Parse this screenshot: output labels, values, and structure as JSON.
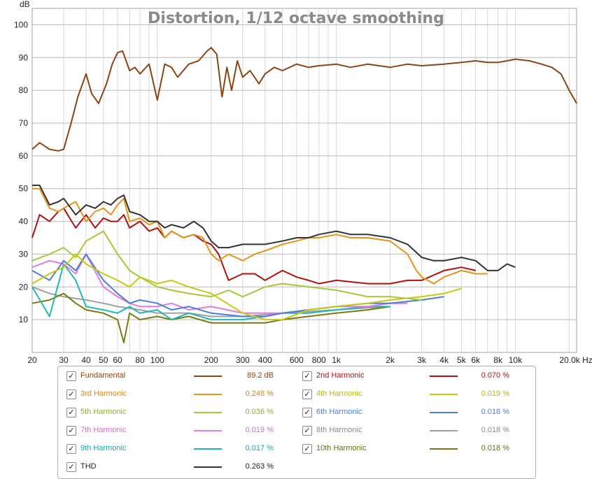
{
  "chart_data": {
    "type": "line",
    "title": "Distortion, 1/12 octave smoothing",
    "ylabel": "dB",
    "xlabel": "",
    "x_unit": "Hz",
    "x_scale": "log",
    "xlim": [
      20,
      22000
    ],
    "ylim": [
      0,
      105
    ],
    "grid": true,
    "legend_position": "bottom",
    "x_ticks": [
      20,
      30,
      40,
      50,
      60,
      80,
      100,
      200,
      300,
      400,
      600,
      800,
      1000,
      2000,
      3000,
      4000,
      5000,
      6000,
      8000,
      10000,
      20000
    ],
    "x_tick_labels": [
      "20",
      "30",
      "40",
      "50",
      "60",
      "80",
      "100",
      "200",
      "300",
      "400",
      "600",
      "800",
      "1k",
      "2k",
      "3k",
      "4k",
      "5k",
      "6k",
      "8k",
      "10k",
      "20.0k Hz"
    ],
    "y_ticks": [
      10,
      20,
      30,
      40,
      50,
      60,
      70,
      80,
      90,
      100
    ],
    "y_tick_labels": [
      "10",
      "20",
      "30",
      "40",
      "50",
      "60",
      "70",
      "80",
      "90",
      "100"
    ],
    "series": [
      {
        "name": "Fundamental",
        "color": "#8b4513",
        "value": "89.2 dB",
        "x": [
          20,
          22,
          25,
          28,
          30,
          33,
          36,
          40,
          43,
          47,
          52,
          56,
          60,
          64,
          70,
          75,
          80,
          90,
          100,
          110,
          120,
          130,
          150,
          170,
          190,
          200,
          215,
          230,
          245,
          260,
          280,
          300,
          330,
          370,
          400,
          450,
          500,
          600,
          700,
          800,
          1000,
          1200,
          1500,
          2000,
          2500,
          3000,
          4000,
          5000,
          6000,
          7000,
          8000,
          9000,
          10000,
          12000,
          14000,
          16000,
          18000,
          20000,
          22000
        ],
        "y": [
          62,
          64,
          62,
          61.5,
          62,
          70,
          78,
          85,
          79,
          76,
          82,
          88,
          91.5,
          92,
          86,
          87,
          85,
          88,
          77,
          88,
          87,
          84,
          88,
          89,
          92,
          93,
          91,
          78,
          87,
          80,
          89,
          84,
          86,
          82,
          85,
          87,
          86,
          88,
          87,
          87.5,
          88,
          87,
          88,
          87,
          88,
          87.5,
          88,
          88.5,
          89,
          88.5,
          88.5,
          89,
          89.5,
          89,
          88,
          87,
          85,
          80,
          76
        ]
      },
      {
        "name": "2nd Harmonic",
        "color": "#b01010",
        "value": "0.070 %",
        "x": [
          20,
          22,
          25,
          28,
          30,
          35,
          40,
          45,
          50,
          55,
          60,
          65,
          70,
          80,
          90,
          100,
          110,
          120,
          140,
          160,
          180,
          200,
          220,
          250,
          300,
          350,
          400,
          500,
          600,
          700,
          800,
          1000,
          1500,
          2000,
          2500,
          3000,
          4000,
          5000,
          6000
        ],
        "y": [
          35,
          42,
          40,
          43,
          44,
          38,
          42,
          38,
          41,
          40,
          40,
          42,
          38,
          40,
          37,
          38,
          35,
          37,
          35,
          36,
          34,
          33,
          30,
          22,
          24,
          24,
          22,
          25,
          23,
          22,
          21,
          22,
          21,
          21,
          22,
          22,
          25,
          26,
          25
        ]
      },
      {
        "name": "3rd Harmonic",
        "color": "#e69419",
        "value": "0.248 %",
        "x": [
          20,
          22,
          25,
          28,
          30,
          35,
          40,
          45,
          50,
          55,
          60,
          65,
          70,
          80,
          90,
          100,
          110,
          120,
          140,
          160,
          180,
          200,
          220,
          250,
          300,
          350,
          400,
          500,
          600,
          700,
          800,
          1000,
          1200,
          1500,
          2000,
          2500,
          2800,
          3000,
          3500,
          4000,
          5000,
          6000,
          7000
        ],
        "y": [
          50,
          50,
          44,
          43,
          44,
          46,
          40,
          43,
          44,
          42,
          45,
          47,
          40,
          41,
          39,
          40,
          35,
          37,
          35,
          36,
          35,
          30,
          28,
          30,
          28,
          30,
          31,
          33,
          34,
          35,
          35,
          36,
          35,
          35,
          34,
          30,
          25,
          23,
          21,
          23,
          25,
          24,
          24
        ]
      },
      {
        "name": "4th Harmonic",
        "color": "#c8c810",
        "value": "0.019 %",
        "x": [
          20,
          25,
          30,
          35,
          40,
          50,
          60,
          70,
          80,
          100,
          120,
          150,
          200,
          300,
          400,
          500,
          700,
          1000,
          1500,
          2000,
          3000,
          4000,
          5000
        ],
        "y": [
          21,
          24,
          26,
          30,
          27,
          24,
          22,
          20,
          23,
          21,
          22,
          20,
          18,
          12,
          10,
          10,
          13,
          14,
          15,
          16,
          17,
          18,
          19.5
        ]
      },
      {
        "name": "5th Harmonic",
        "color": "#a3c93a",
        "value": "0.036 %",
        "x": [
          20,
          25,
          30,
          35,
          40,
          50,
          60,
          70,
          80,
          100,
          120,
          150,
          200,
          250,
          300,
          400,
          500,
          700,
          1000,
          1500,
          2000,
          3000
        ],
        "y": [
          28,
          30,
          32,
          29,
          34,
          37,
          30,
          25,
          23,
          20,
          19,
          18,
          17,
          19,
          17,
          20,
          21,
          20,
          19,
          17,
          17,
          16
        ]
      },
      {
        "name": "6th Harmonic",
        "color": "#4b7fd6",
        "value": "0.018 %",
        "x": [
          20,
          25,
          30,
          35,
          40,
          50,
          60,
          70,
          80,
          100,
          120,
          150,
          200,
          300,
          400,
          500,
          700,
          1000,
          1500,
          2000,
          3000,
          4000
        ],
        "y": [
          25,
          22,
          28,
          25,
          30,
          22,
          18,
          15,
          16,
          15,
          13,
          14,
          12,
          11,
          11,
          12,
          13,
          14,
          15,
          15,
          16,
          17
        ]
      },
      {
        "name": "7th Harmonic",
        "color": "#e07ae0",
        "value": "0.019 %",
        "x": [
          20,
          25,
          30,
          35,
          40,
          50,
          60,
          70,
          80,
          100,
          120,
          150,
          200,
          300,
          400,
          500,
          700,
          1000,
          1500,
          2000,
          2500
        ],
        "y": [
          26,
          28,
          27,
          24,
          30,
          20,
          17,
          15,
          14,
          14,
          15,
          13,
          14,
          12,
          12,
          12,
          13,
          14,
          14,
          15,
          15
        ]
      },
      {
        "name": "8th Harmonic",
        "color": "#a0a0a0",
        "value": "0.018 %",
        "x": [
          20,
          25,
          30,
          40,
          50,
          60,
          80,
          100,
          150,
          200,
          300,
          500,
          1000,
          2000
        ],
        "y": [
          20,
          18,
          17,
          16,
          15,
          14,
          13,
          12,
          12,
          11,
          11,
          12,
          13,
          14
        ]
      },
      {
        "name": "9th Harmonic",
        "color": "#1fb8b8",
        "value": "0.017 %",
        "x": [
          20,
          25,
          30,
          35,
          40,
          50,
          60,
          70,
          80,
          100,
          120,
          150,
          200,
          300,
          400,
          500,
          700,
          1000,
          1500,
          2000
        ],
        "y": [
          20,
          11,
          27,
          22,
          14,
          13,
          12,
          14,
          12,
          13,
          10,
          12,
          10,
          10,
          11,
          12,
          12,
          13,
          14,
          14
        ]
      },
      {
        "name": "10th Harmonic",
        "color": "#7a7a10",
        "value": "0.018 %",
        "x": [
          20,
          25,
          30,
          35,
          40,
          50,
          60,
          65,
          70,
          80,
          100,
          120,
          150,
          200,
          300,
          400,
          500,
          700,
          1000,
          1500,
          2000
        ],
        "y": [
          15,
          16,
          18,
          15,
          13,
          12,
          10,
          3,
          12,
          10,
          11,
          10,
          11,
          9,
          9,
          9,
          10,
          11,
          12,
          13,
          14
        ]
      },
      {
        "name": "THD",
        "color": "#333333",
        "value": "0.263 %",
        "x": [
          20,
          22,
          25,
          28,
          30,
          35,
          40,
          45,
          50,
          55,
          60,
          65,
          70,
          80,
          90,
          100,
          110,
          120,
          140,
          160,
          180,
          200,
          220,
          250,
          300,
          350,
          400,
          500,
          600,
          700,
          800,
          1000,
          1200,
          1500,
          2000,
          2500,
          3000,
          3500,
          4000,
          5000,
          6000,
          7000,
          8000,
          9000,
          10000
        ],
        "y": [
          51,
          51,
          45,
          46,
          47,
          42,
          45,
          44,
          46,
          45,
          47,
          48,
          43,
          42,
          40,
          40,
          38,
          39,
          38,
          40,
          38,
          34,
          32,
          32,
          33,
          33,
          33,
          34,
          35,
          35,
          36,
          37,
          36,
          36,
          35,
          33,
          29,
          28,
          28,
          29,
          28,
          25,
          25,
          27,
          26
        ]
      }
    ]
  },
  "legend": {
    "check_mark": "✓",
    "items": [
      {
        "label": "Fundamental",
        "value": "89.2 dB",
        "text_color": "#8b4513",
        "swatch": "#8b4513"
      },
      {
        "label": "2nd Harmonic",
        "value": "0.070 %",
        "text_color": "#b01010",
        "swatch": "#b01010"
      },
      {
        "label": "3rd Harmonic",
        "value": "0.248 %",
        "text_color": "#d98712",
        "swatch": "#e69419"
      },
      {
        "label": "4th Harmonic",
        "value": "0.019 %",
        "text_color": "#b8b812",
        "swatch": "#c8c810"
      },
      {
        "label": "5th Harmonic",
        "value": "0.036 %",
        "text_color": "#8db02a",
        "swatch": "#a3c93a"
      },
      {
        "label": "6th Harmonic",
        "value": "0.018 %",
        "text_color": "#4b7fd6",
        "swatch": "#4b7fd6"
      },
      {
        "label": "7th Harmonic",
        "value": "0.019 %",
        "text_color": "#d26ad2",
        "swatch": "#e07ae0"
      },
      {
        "label": "8th Harmonic",
        "value": "0.018 %",
        "text_color": "#8a8a8a",
        "swatch": "#a0a0a0"
      },
      {
        "label": "9th Harmonic",
        "value": "0.017 %",
        "text_color": "#16a8a8",
        "swatch": "#1fb8b8"
      },
      {
        "label": "10th Harmonic",
        "value": "0.018 %",
        "text_color": "#6e6e0e",
        "swatch": "#7a7a10"
      },
      {
        "label": "THD",
        "value": "0.263 %",
        "text_color": "#222222",
        "swatch": "#333333"
      }
    ]
  }
}
